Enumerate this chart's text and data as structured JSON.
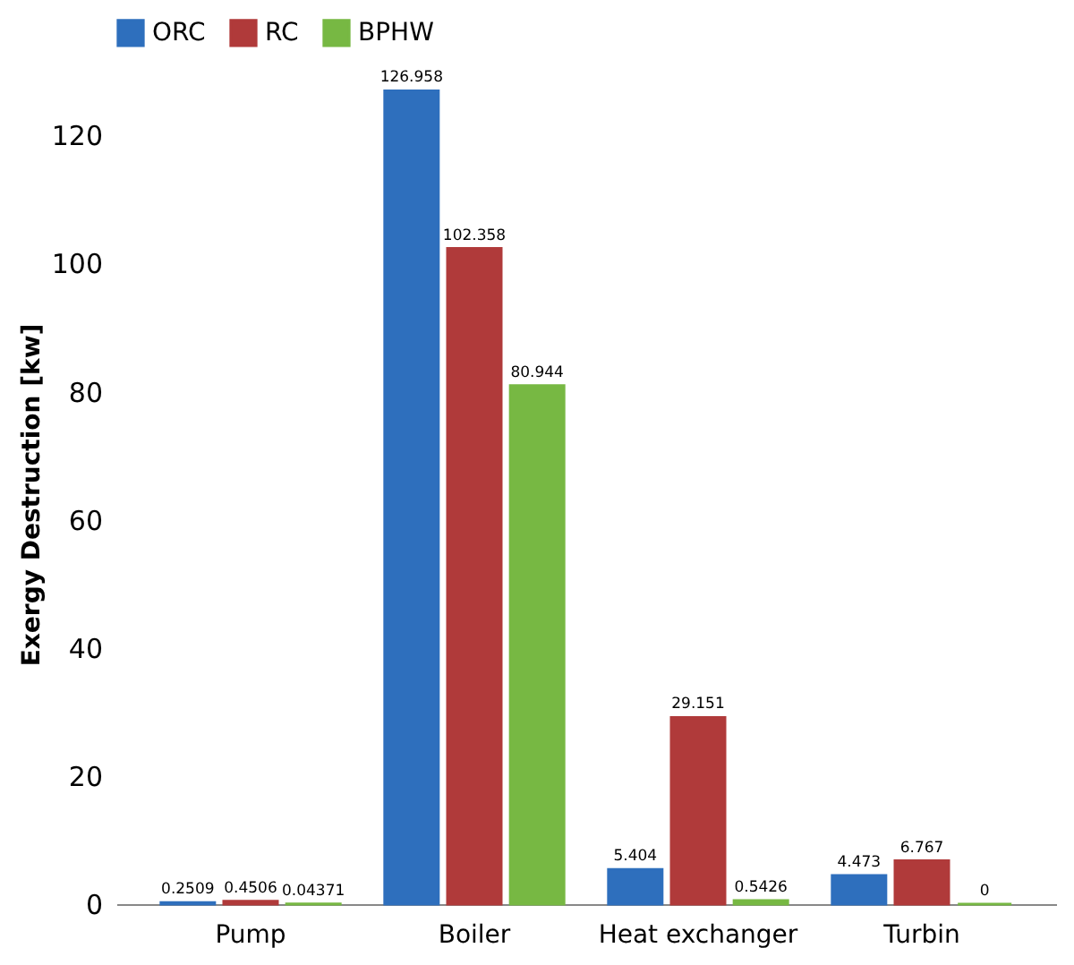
{
  "chart_data": {
    "type": "bar",
    "ylabel": "Exergy Destruction [kw]",
    "categories": [
      "Pump",
      "Boiler",
      "Heat exchanger",
      "Turbin"
    ],
    "series": [
      {
        "name": "ORC",
        "color": "#2e6fbd",
        "values": [
          0.2509,
          126.958,
          5.404,
          4.473
        ]
      },
      {
        "name": "RC",
        "color": "#b03a3a",
        "values": [
          0.4506,
          102.358,
          29.151,
          6.767
        ]
      },
      {
        "name": "BPHW",
        "color": "#77b843",
        "values": [
          0.04371,
          80.944,
          0.5426,
          0
        ]
      }
    ],
    "ylim": [
      0,
      128
    ],
    "yticks": [
      0,
      20,
      40,
      60,
      80,
      100,
      120
    ],
    "grid": false,
    "legend": "top",
    "data_labels": true
  }
}
